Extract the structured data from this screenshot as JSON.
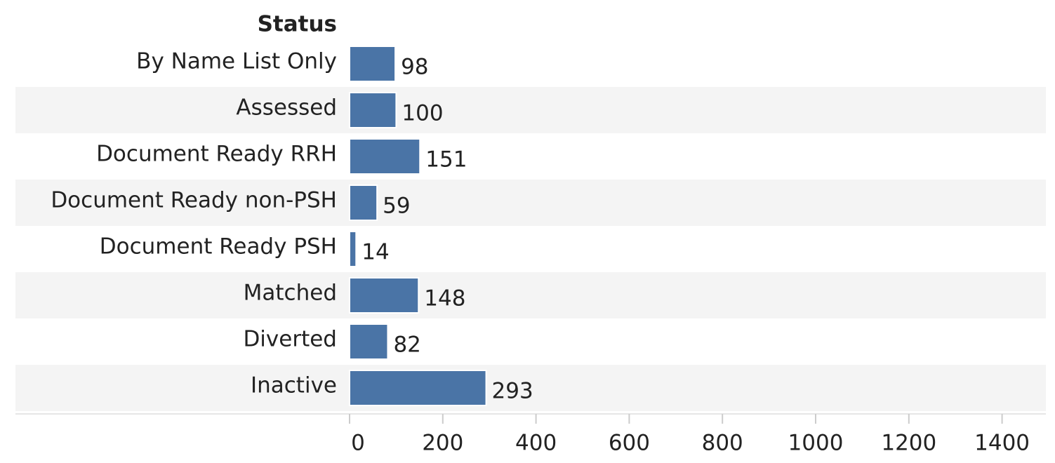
{
  "chart_data": {
    "type": "hbar",
    "y_label": "Status",
    "categories": [
      "By Name List Only",
      "Assessed",
      "Document Ready RRH",
      "Document Ready non-PSH",
      "Document Ready PSH",
      "Matched",
      "Diverted",
      "Inactive"
    ],
    "values": [
      98,
      100,
      151,
      59,
      14,
      148,
      82,
      293
    ],
    "color": "#4a74a6",
    "xlim": [
      0,
      1500
    ],
    "xticks": [
      0,
      200,
      400,
      600,
      800,
      1000,
      1200,
      1400
    ],
    "banding": true
  }
}
